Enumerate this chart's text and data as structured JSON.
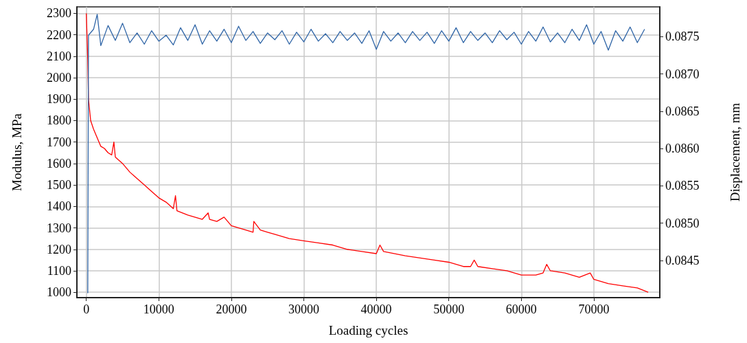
{
  "chart_data": {
    "type": "line",
    "xlabel": "Loading cycles",
    "ylabel": "Modulus, MPa",
    "y2label": "Displacement, mm",
    "xlim": [
      -1300,
      79100
    ],
    "xticks": [
      0,
      10000,
      20000,
      30000,
      40000,
      50000,
      60000,
      70000
    ],
    "ylim": [
      975,
      2330
    ],
    "yticks": [
      1000,
      1100,
      1200,
      1300,
      1400,
      1500,
      1600,
      1700,
      1800,
      1900,
      2000,
      2100,
      2200,
      2300
    ],
    "y2lim": [
      0.084,
      0.0879
    ],
    "y2ticks": [
      0.0845,
      {
        "value": 0.085,
        "label": "0.0850"
      },
      0.0855,
      {
        "value": 0.086,
        "label": "0.0860"
      },
      0.0865,
      {
        "value": 0.087,
        "label": "0.0870"
      },
      0.0875
    ],
    "grid": true,
    "marker": "none",
    "line_style": "solid",
    "series": [
      {
        "color": "#ff0000",
        "x": [
          0,
          200,
          300,
          600,
          1000,
          1500,
          2000,
          2500,
          3000,
          3500,
          3800,
          4000,
          5000,
          6000,
          7000,
          8000,
          9000,
          10000,
          11000,
          12000,
          12300,
          12500,
          14000,
          16000,
          16800,
          17000,
          18000,
          19000,
          20000,
          22000,
          23000,
          23100,
          24000,
          25000,
          26000,
          28000,
          30000,
          32000,
          34000,
          36000,
          38000,
          40000,
          40500,
          41000,
          44000,
          48000,
          50000,
          52000,
          53000,
          53500,
          54000,
          56000,
          58000,
          60000,
          62000,
          63000,
          63500,
          64000,
          66000,
          68000,
          69500,
          70000,
          72000,
          74000,
          76000,
          77500
        ],
        "values": [
          2300,
          2080,
          1900,
          1800,
          1760,
          1720,
          1680,
          1670,
          1650,
          1640,
          1700,
          1630,
          1600,
          1560,
          1530,
          1500,
          1470,
          1440,
          1420,
          1390,
          1450,
          1380,
          1360,
          1340,
          1370,
          1340,
          1330,
          1350,
          1310,
          1290,
          1280,
          1330,
          1290,
          1280,
          1270,
          1250,
          1240,
          1230,
          1220,
          1200,
          1190,
          1180,
          1220,
          1190,
          1170,
          1150,
          1140,
          1120,
          1120,
          1150,
          1120,
          1110,
          1100,
          1080,
          1080,
          1090,
          1130,
          1100,
          1090,
          1070,
          1090,
          1060,
          1040,
          1030,
          1020,
          1000
        ]
      },
      {
        "color": "#2e64a6",
        "axis": "y2",
        "x": [
          200,
          300,
          1000,
          1500,
          2000,
          3000,
          4000,
          5000,
          6000,
          7000,
          8000,
          9000,
          10000,
          11000,
          12000,
          13000,
          14000,
          15000,
          16000,
          17000,
          18000,
          19000,
          20000,
          21000,
          22000,
          23000,
          24000,
          25000,
          26000,
          27000,
          28000,
          29000,
          30000,
          31000,
          32000,
          33000,
          34000,
          35000,
          36000,
          37000,
          38000,
          39000,
          40000,
          41000,
          42000,
          43000,
          44000,
          45000,
          46000,
          47000,
          48000,
          49000,
          50000,
          51000,
          52000,
          53000,
          54000,
          55000,
          56000,
          57000,
          58000,
          59000,
          60000,
          61000,
          62000,
          63000,
          64000,
          65000,
          66000,
          67000,
          68000,
          69000,
          70000,
          71000,
          72000,
          73000,
          74000,
          75000,
          76000,
          77000
        ],
        "values": [
          0.08406,
          0.08752,
          0.0876,
          0.0878,
          0.08738,
          0.08765,
          0.08745,
          0.08768,
          0.08742,
          0.08755,
          0.0874,
          0.08758,
          0.08744,
          0.08752,
          0.08739,
          0.08762,
          0.08745,
          0.08766,
          0.0874,
          0.08758,
          0.08744,
          0.0876,
          0.08742,
          0.08764,
          0.08745,
          0.08757,
          0.08741,
          0.08755,
          0.08746,
          0.08758,
          0.0874,
          0.08756,
          0.08743,
          0.0876,
          0.08744,
          0.08754,
          0.08742,
          0.08757,
          0.08745,
          0.08755,
          0.08741,
          0.08758,
          0.08733,
          0.08757,
          0.08744,
          0.08755,
          0.08742,
          0.08757,
          0.08745,
          0.08756,
          0.08741,
          0.08758,
          0.08744,
          0.08762,
          0.08742,
          0.08757,
          0.08745,
          0.08755,
          0.08742,
          0.08758,
          0.08746,
          0.08756,
          0.0874,
          0.08757,
          0.08744,
          0.08763,
          0.08743,
          0.08755,
          0.08742,
          0.0876,
          0.08745,
          0.08766,
          0.0874,
          0.08757,
          0.08732,
          0.08758,
          0.08744,
          0.08763,
          0.08742,
          0.0876
        ]
      }
    ]
  }
}
